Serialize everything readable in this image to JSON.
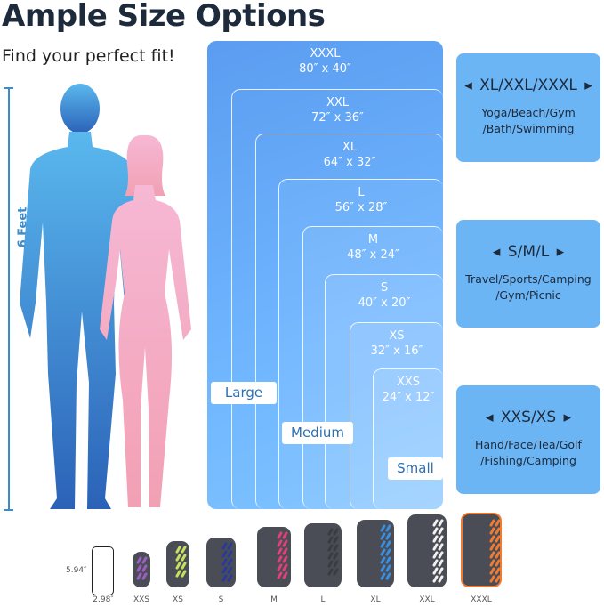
{
  "title": "Ample Size Options",
  "subtitle": "Find your perfect fit!",
  "height_label": "6 Feet",
  "sizes": [
    {
      "name": "XXXL",
      "dims": "80″ x 40″"
    },
    {
      "name": "XXL",
      "dims": "72″ x 36″"
    },
    {
      "name": "XL",
      "dims": "64″ x 32″"
    },
    {
      "name": "L",
      "dims": "56″ x 28″"
    },
    {
      "name": "M",
      "dims": "48″ x 24″"
    },
    {
      "name": "S",
      "dims": "40″ x 20″"
    },
    {
      "name": "XS",
      "dims": "32″ x 16″"
    },
    {
      "name": "XXS",
      "dims": "24″ x 12″"
    }
  ],
  "groups": {
    "large": "Large",
    "medium": "Medium",
    "small": "Small"
  },
  "cards": [
    {
      "heading": "◂ XL/XXL/XXXL ▸",
      "line1": "Yoga/Beach/Gym",
      "line2": "/Bath/Swimming"
    },
    {
      "heading": "◂   S/M/L   ▸",
      "line1": "Travel/Sports/Camping",
      "line2": "/Gym/Picnic"
    },
    {
      "heading": "◂  XXS/XS  ▸",
      "line1": "Hand/Face/Tea/Golf",
      "line2": "/Fishing/Camping"
    }
  ],
  "phone": {
    "height": "5.94″",
    "width": "2.98″"
  },
  "pouches": [
    {
      "label": "XXS",
      "color": "#9b5fc0"
    },
    {
      "label": "XS",
      "color": "#c8e05a"
    },
    {
      "label": "S",
      "color": "#2b3a9a"
    },
    {
      "label": "M",
      "color": "#e0407a"
    },
    {
      "label": "L",
      "color": "#3a3c42"
    },
    {
      "label": "XL",
      "color": "#3a8ee0"
    },
    {
      "label": "XXL",
      "color": "#f0f0f0"
    },
    {
      "label": "XXXL",
      "color": "#f07a30"
    }
  ],
  "colors": {
    "man": "#3d8bd8",
    "woman": "#f4a8c8",
    "box": "#6fb6ff",
    "card": "#6cb5f5"
  }
}
